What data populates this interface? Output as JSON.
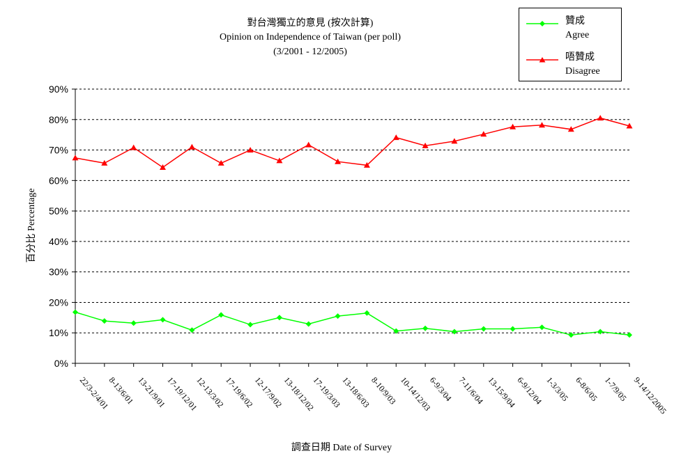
{
  "chart_data": {
    "type": "line",
    "title": "對台灣獨立的意見 (按次計算)",
    "subtitle": "Opinion on Independence of Taiwan (per poll)",
    "period": "(3/2001 - 12/2005)",
    "xlabel": "調查日期 Date of Survey",
    "ylabel": "百分比 Percentage",
    "ylim": [
      0,
      90
    ],
    "yticks": [
      "0%",
      "10%",
      "20%",
      "30%",
      "40%",
      "50%",
      "60%",
      "70%",
      "80%",
      "90%"
    ],
    "grid": true,
    "legend_position": "top-right",
    "categories": [
      "22/3-2/4/01",
      "8-13/6/01",
      "13-21/9/01",
      "17-19/12/01",
      "12-13/3/02",
      "17-19/6/02",
      "12-17/9/02",
      "13-18/12/02",
      "17-19/3/03",
      "13-18/6/03",
      "8-10/9/03",
      "10-14/12/03",
      "6-9/3/04",
      "7-11/6/04",
      "13-15/9/04",
      "6-9/12/04",
      "1-3/3/05",
      "6-8/6/05",
      "1-7/9/05",
      "9-14/12/2005"
    ],
    "series": [
      {
        "name": "贊成",
        "name_en": "Agree",
        "color": "#00ff00",
        "marker": "diamond",
        "values": [
          16.8,
          13.9,
          13.2,
          14.3,
          10.9,
          15.9,
          12.7,
          15.0,
          12.9,
          15.5,
          16.5,
          10.6,
          11.5,
          10.4,
          11.3,
          11.3,
          11.8,
          9.3,
          10.4,
          9.3
        ]
      },
      {
        "name": "唔贊成",
        "name_en": "Disagree",
        "color": "#ff0000",
        "marker": "triangle",
        "values": [
          67.4,
          65.7,
          70.8,
          64.3,
          71.0,
          65.7,
          70.0,
          66.5,
          71.7,
          66.2,
          65.0,
          74.1,
          71.4,
          72.9,
          75.2,
          77.6,
          78.2,
          76.8,
          80.5,
          77.9
        ]
      }
    ]
  }
}
